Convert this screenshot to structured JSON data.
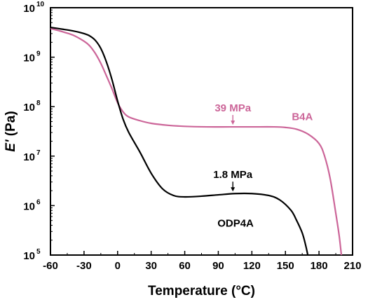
{
  "chart_data": {
    "type": "line",
    "title": "",
    "xlabel": "Temperature (°C)",
    "ylabel": "E' (Pa)",
    "xlim": [
      -60,
      210
    ],
    "ylim_log10": [
      5,
      10
    ],
    "y_scale": "log",
    "x_ticks": [
      "-60",
      "-30",
      "0",
      "30",
      "60",
      "90",
      "120",
      "150",
      "180",
      "210"
    ],
    "y_ticks": [
      {
        "base": "10",
        "exp": "5"
      },
      {
        "base": "10",
        "exp": "6"
      },
      {
        "base": "10",
        "exp": "7"
      },
      {
        "base": "10",
        "exp": "8"
      },
      {
        "base": "10",
        "exp": "9"
      },
      {
        "base": "10",
        "exp": "10"
      }
    ],
    "grid": false,
    "series": [
      {
        "name": "B4A",
        "color": "#cc6699",
        "x": [
          -60,
          -50,
          -40,
          -30,
          -25,
          -20,
          -15,
          -10,
          -5,
          0,
          5,
          10,
          20,
          30,
          45,
          60,
          80,
          100,
          120,
          140,
          150,
          160,
          170,
          180,
          185,
          190,
          195,
          198,
          200
        ],
        "y": [
          3800000000.0,
          3300000000.0,
          2800000000.0,
          2100000000.0,
          1700000000.0,
          1200000000.0,
          750000000.0,
          420000000.0,
          230000000.0,
          120000000.0,
          78000000.0,
          62000000.0,
          52000000.0,
          46000000.0,
          42000000.0,
          40000000.0,
          39000000.0,
          39000000.0,
          39000000.0,
          39000000.0,
          38000000.0,
          35000000.0,
          28000000.0,
          18000000.0,
          10000000.0,
          3500000.0,
          700000.0,
          250000.0,
          100000.0
        ]
      },
      {
        "name": "ODP4A",
        "color": "#000000",
        "x": [
          -60,
          -50,
          -40,
          -30,
          -25,
          -20,
          -15,
          -10,
          -5,
          0,
          5,
          10,
          20,
          30,
          40,
          50,
          60,
          75,
          90,
          105,
          120,
          135,
          145,
          155,
          160,
          165,
          168,
          170
        ],
        "y": [
          4000000000.0,
          3700000000.0,
          3400000000.0,
          3000000000.0,
          2700000000.0,
          2200000000.0,
          1500000000.0,
          800000000.0,
          350000000.0,
          130000000.0,
          55000000.0,
          30000000.0,
          12000000.0,
          4500000.0,
          2200000.0,
          1600000.0,
          1500000.0,
          1550000.0,
          1650000.0,
          1750000.0,
          1750000.0,
          1600000.0,
          1300000.0,
          800000.0,
          500000.0,
          280000.0,
          160000.0,
          100000.0
        ]
      }
    ],
    "annotations": [
      {
        "text": "39 MPa",
        "x": 103,
        "y": 39000000.0,
        "color": "#cc6699",
        "series": "B4A"
      },
      {
        "text": "1.8 MPa",
        "x": 103,
        "y": 1750000.0,
        "color": "#000000",
        "series": "ODP4A"
      }
    ],
    "series_labels": [
      {
        "text": "B4A",
        "x": 167,
        "y": 40000000.0,
        "color": "#cc6699"
      },
      {
        "text": "ODP4A",
        "x": 103,
        "y": 650000.0,
        "color": "#000000"
      }
    ]
  }
}
